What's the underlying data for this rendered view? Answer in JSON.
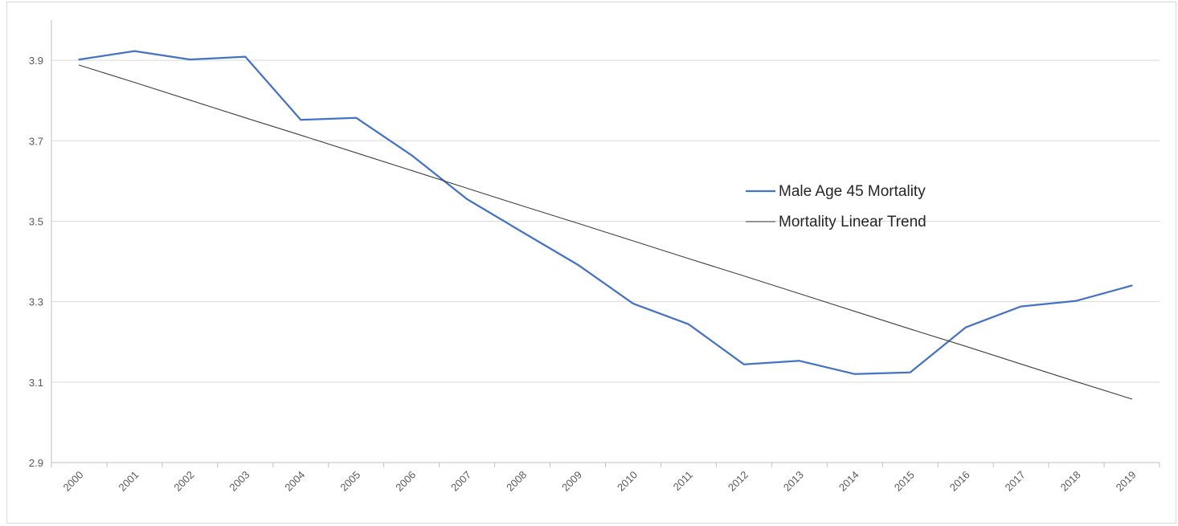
{
  "chart_data": {
    "type": "line",
    "title": "",
    "xlabel": "",
    "ylabel": "",
    "categories": [
      "2000",
      "2001",
      "2002",
      "2003",
      "2004",
      "2005",
      "2006",
      "2007",
      "2008",
      "2009",
      "2010",
      "2011",
      "2012",
      "2013",
      "2014",
      "2015",
      "2016",
      "2017",
      "2018",
      "2019"
    ],
    "ylim": [
      2.9,
      4.0
    ],
    "yticks": [
      "2.9",
      "3.1",
      "3.3",
      "3.5",
      "3.7",
      "3.9"
    ],
    "grid": true,
    "legend_placement": "center-right",
    "series": [
      {
        "name": "Male Age 45 Mortality",
        "color": "#4472c4",
        "values": [
          3.902,
          3.923,
          3.902,
          3.909,
          3.752,
          3.757,
          3.664,
          3.555,
          3.473,
          3.392,
          3.295,
          3.244,
          3.144,
          3.153,
          3.12,
          3.124,
          3.236,
          3.288,
          3.302,
          3.34
        ]
      },
      {
        "name": "Mortality Linear Trend",
        "color": "#404040",
        "values": [
          3.888,
          3.845,
          3.801,
          3.757,
          3.714,
          3.67,
          3.626,
          3.582,
          3.538,
          3.495,
          3.451,
          3.407,
          3.364,
          3.32,
          3.276,
          3.232,
          3.189,
          3.145,
          3.101,
          3.058
        ]
      }
    ]
  }
}
